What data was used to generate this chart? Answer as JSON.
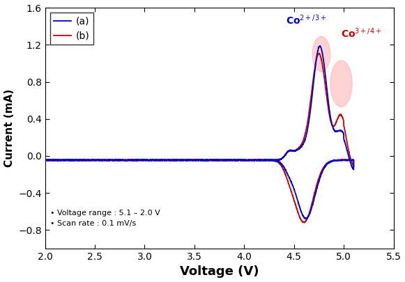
{
  "xlabel": "Voltage (V)",
  "ylabel": "Current (mA)",
  "xlim": [
    2.0,
    5.5
  ],
  "ylim": [
    -1.0,
    1.6
  ],
  "xticks": [
    2.0,
    2.5,
    3.0,
    3.5,
    4.0,
    4.5,
    5.0,
    5.5
  ],
  "yticks": [
    -0.8,
    -0.4,
    0.0,
    0.4,
    0.8,
    1.2,
    1.6
  ],
  "color_a": "#0000CC",
  "color_b": "#CC0000",
  "annotation_co23": "Co$^{2+/3+}$",
  "annotation_co34": "Co$^{3+/4+}$",
  "legend_a": "(a)",
  "legend_b": "(b)",
  "info_line1": "• Voltage range : 5.1 – 2.0 V",
  "info_line2": "• Scan rate : 0.1 mV/s",
  "background_color": "#ffffff",
  "highlight_color": "#FFB0B0"
}
